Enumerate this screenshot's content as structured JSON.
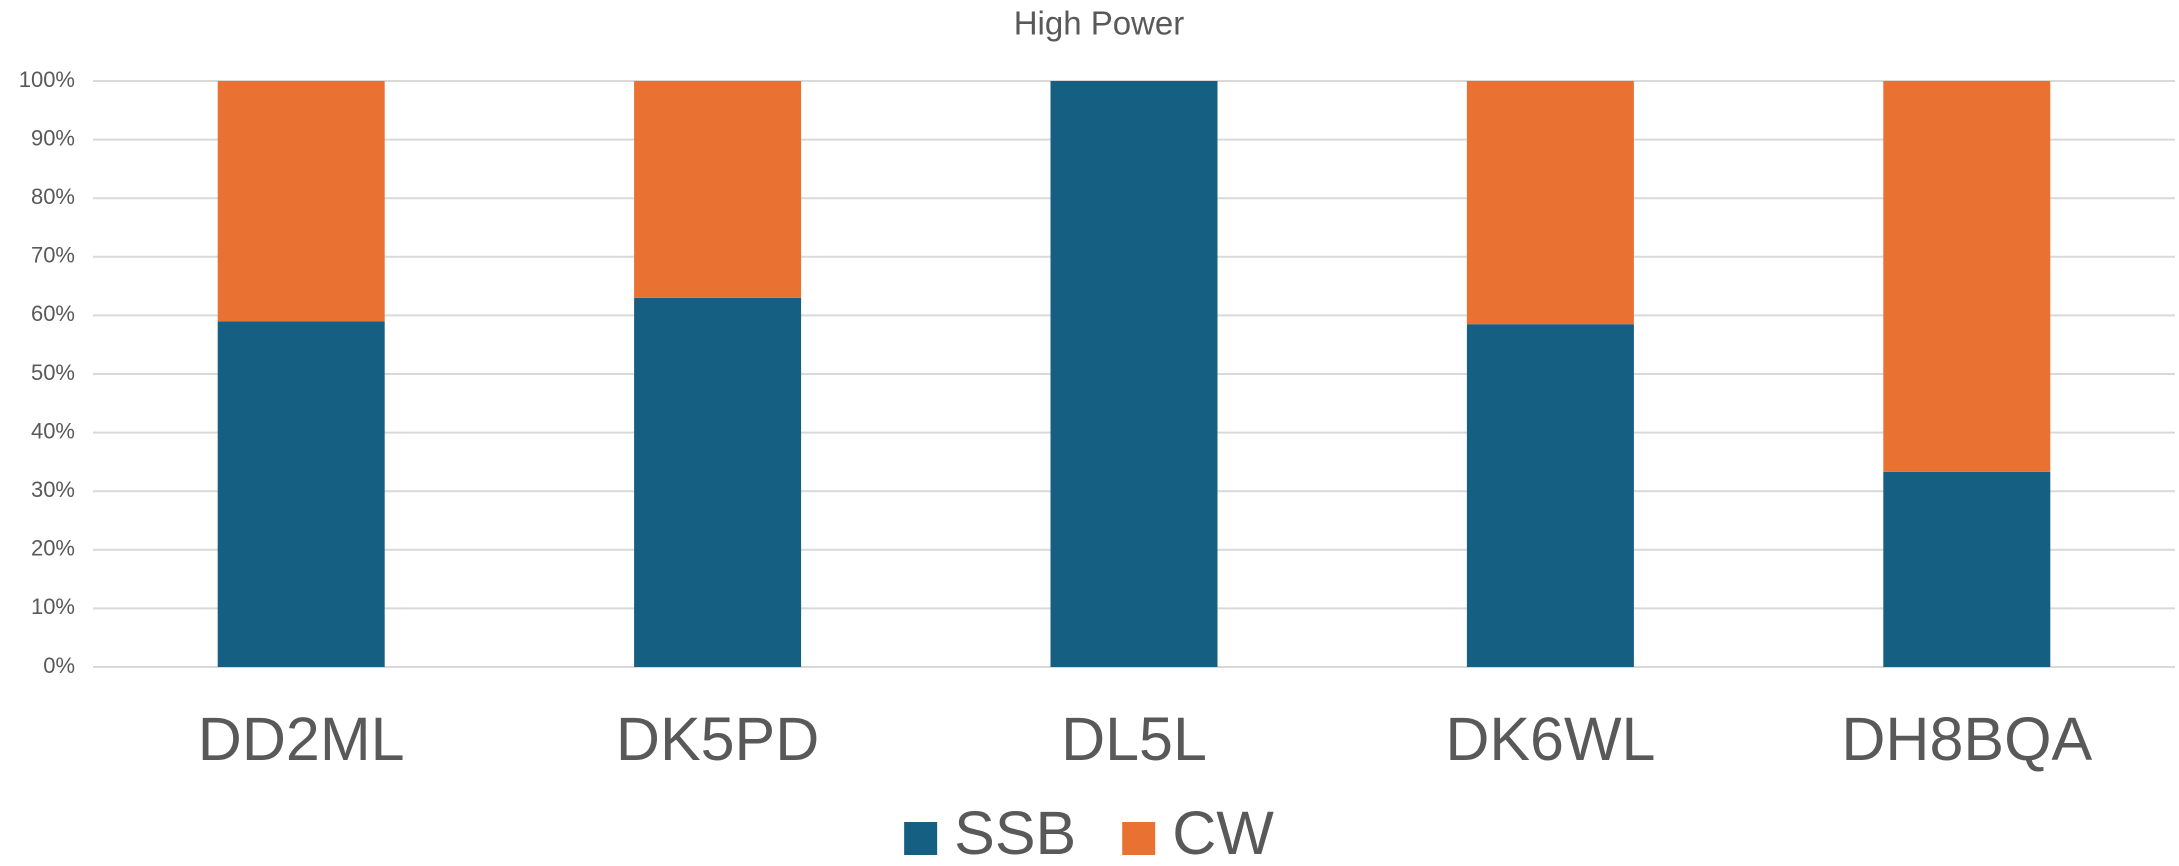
{
  "chart_data": {
    "type": "stacked_bar",
    "title": "High Power",
    "categories": [
      "DD2ML",
      "DK5PD",
      "DL5L",
      "DK6WL",
      "DH8BQA"
    ],
    "series": [
      {
        "name": "SSB",
        "color": "#156082",
        "values": [
          59,
          63,
          100,
          58.5,
          33.3
        ]
      },
      {
        "name": "CW",
        "color": "#e97132",
        "values": [
          41,
          37,
          0,
          41.5,
          66.7
        ]
      }
    ],
    "ylim": [
      0,
      100
    ],
    "yticks": [
      {
        "value": 0,
        "label": "0%"
      },
      {
        "value": 10,
        "label": "10%"
      },
      {
        "value": 20,
        "label": "20%"
      },
      {
        "value": 30,
        "label": "30%"
      },
      {
        "value": 40,
        "label": "40%"
      },
      {
        "value": 50,
        "label": "50%"
      },
      {
        "value": 60,
        "label": "60%"
      },
      {
        "value": 70,
        "label": "70%"
      },
      {
        "value": 80,
        "label": "80%"
      },
      {
        "value": 90,
        "label": "90%"
      },
      {
        "value": 100,
        "label": "100%"
      }
    ],
    "grid": true,
    "legend": "bottom"
  }
}
